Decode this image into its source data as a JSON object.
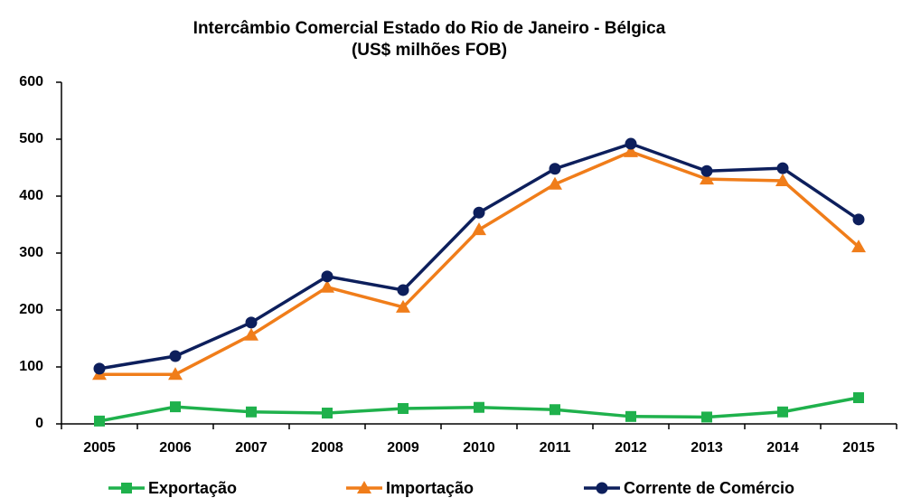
{
  "chart_data": {
    "type": "line",
    "title": "Intercâmbio Comercial Estado do Rio de Janeiro - Bélgica",
    "subtitle": "(US$ milhões FOB)",
    "categories": [
      "2005",
      "2006",
      "2007",
      "2008",
      "2009",
      "2010",
      "2011",
      "2012",
      "2013",
      "2014",
      "2015"
    ],
    "series": [
      {
        "name": "Exportação",
        "color": "#1fb14c",
        "marker": "square",
        "values": [
          5,
          30,
          21,
          19,
          27,
          29,
          25,
          13,
          12,
          21,
          46
        ]
      },
      {
        "name": "Importação",
        "color": "#f07d1a",
        "marker": "triangle",
        "values": [
          87,
          87,
          156,
          240,
          205,
          341,
          421,
          478,
          430,
          427,
          311
        ]
      },
      {
        "name": "Corrente de Comércio",
        "color": "#0d1f5c",
        "marker": "circle",
        "values": [
          97,
          119,
          178,
          259,
          235,
          371,
          448,
          492,
          444,
          449,
          359
        ]
      }
    ],
    "ylim": [
      0,
      600
    ],
    "yticks": [
      0,
      100,
      200,
      300,
      400,
      500,
      600
    ],
    "grid": false,
    "legend": "bottom"
  }
}
